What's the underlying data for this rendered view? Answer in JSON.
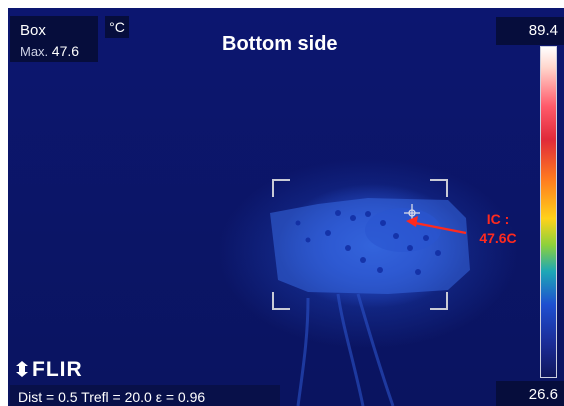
{
  "box": {
    "label": "Box",
    "max_label": "Max.",
    "max_value": "47.6"
  },
  "unit": "°C",
  "title": "Bottom side",
  "scale": {
    "max": "89.4",
    "min": "26.6"
  },
  "annotation": {
    "line1": "IC :",
    "line2": "47.6C",
    "color": "#ff2a1e"
  },
  "brand": "FLIR",
  "status": {
    "text": "Dist = 0.5  Trefl = 20.0  ε = 0.96"
  }
}
